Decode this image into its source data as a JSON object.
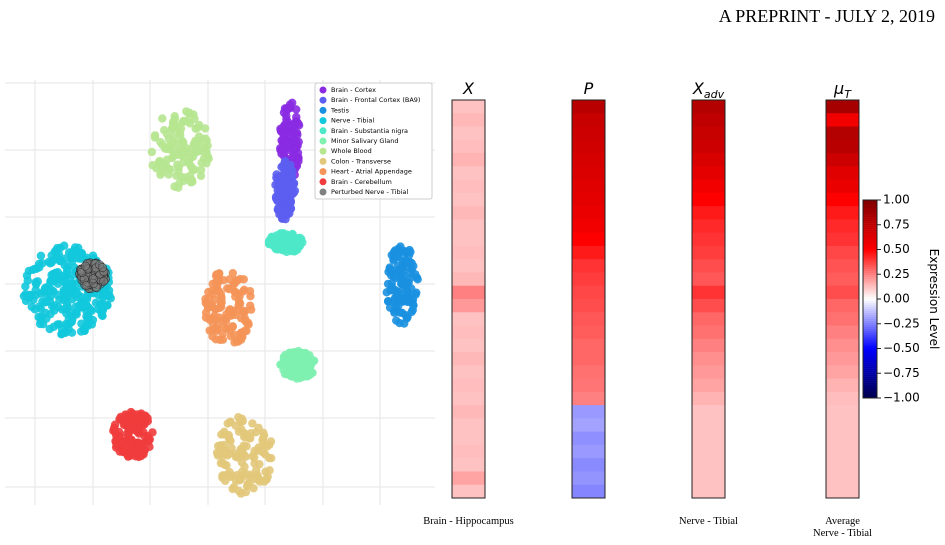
{
  "header": {
    "text": "A PREPRINT - JULY 2, 2019"
  },
  "scatter": {
    "series": [
      {
        "name": "Brain - Cortex",
        "color": "#8a2be2"
      },
      {
        "name": "Brain - Frontal Cortex (BA9)",
        "color": "#5b5ef0"
      },
      {
        "name": "Testis",
        "color": "#1a90e0"
      },
      {
        "name": "Nerve - Tibial",
        "color": "#12c8dc"
      },
      {
        "name": "Brain - Substantia nigra",
        "color": "#4ce8c8"
      },
      {
        "name": "Minor Salivary Gland",
        "color": "#7ef0b0"
      },
      {
        "name": "Whole Blood",
        "color": "#b6e690"
      },
      {
        "name": "Colon - Transverse",
        "color": "#e2c87a"
      },
      {
        "name": "Heart - Atrial Appendage",
        "color": "#f59458"
      },
      {
        "name": "Brain - Cerebellum",
        "color": "#f03c3c"
      },
      {
        "name": "Perturbed Nerve - Tibial",
        "color": "#808080"
      }
    ]
  },
  "heatmap": {
    "columns": [
      {
        "title": "X",
        "caption": [
          "Brain - Hippocampus"
        ],
        "values": [
          0.12,
          0.14,
          0.12,
          0.13,
          0.15,
          0.12,
          0.13,
          0.12,
          0.14,
          0.12,
          0.12,
          0.13,
          0.12,
          0.14,
          0.25,
          0.2,
          0.12,
          0.13,
          0.12,
          0.14,
          0.12,
          0.13,
          0.12,
          0.14,
          0.12,
          0.12,
          0.13,
          0.12,
          0.18,
          0.12
        ]
      },
      {
        "title": "P",
        "values": [
          0.78,
          0.72,
          0.7,
          0.68,
          0.66,
          0.64,
          0.62,
          0.6,
          0.58,
          0.55,
          0.5,
          0.45,
          0.4,
          0.38,
          0.36,
          0.35,
          0.33,
          0.32,
          0.3,
          0.3,
          0.28,
          0.27,
          0.25,
          -0.2,
          -0.18,
          -0.22,
          -0.2,
          -0.23,
          -0.21,
          -0.24
        ]
      },
      {
        "title": "X",
        "subscript": "adv",
        "caption": [
          "Nerve - Tibial"
        ],
        "values": [
          0.8,
          0.75,
          0.72,
          0.7,
          0.65,
          0.6,
          0.55,
          0.5,
          0.45,
          0.42,
          0.4,
          0.38,
          0.35,
          0.33,
          0.4,
          0.35,
          0.3,
          0.28,
          0.25,
          0.22,
          0.2,
          0.18,
          0.15,
          0.12,
          0.12,
          0.12,
          0.12,
          0.12,
          0.12,
          0.12
        ]
      },
      {
        "title": "μ",
        "subscript": "T",
        "caption": [
          "Average",
          "Nerve - Tibial"
        ],
        "values": [
          0.85,
          0.55,
          0.8,
          0.78,
          0.7,
          0.62,
          0.58,
          0.5,
          0.45,
          0.42,
          0.4,
          0.36,
          0.34,
          0.32,
          0.35,
          0.3,
          0.28,
          0.25,
          0.22,
          0.2,
          0.18,
          0.15,
          0.13,
          0.12,
          0.12,
          0.12,
          0.12,
          0.12,
          0.12,
          0.12
        ]
      }
    ],
    "colorbar": {
      "label": "Expression Level",
      "clim": [
        -1,
        1
      ],
      "ticks": [
        {
          "value": 1,
          "label": "1.00"
        },
        {
          "value": 0.75,
          "label": "0.75"
        },
        {
          "value": 0.5,
          "label": "0.50"
        },
        {
          "value": 0.25,
          "label": "0.25"
        },
        {
          "value": 0,
          "label": "0.00"
        },
        {
          "value": -0.25,
          "label": "−0.25"
        },
        {
          "value": -0.5,
          "label": "−0.50"
        },
        {
          "value": -0.75,
          "label": "−0.75"
        },
        {
          "value": -1,
          "label": "−1.00"
        }
      ]
    }
  }
}
